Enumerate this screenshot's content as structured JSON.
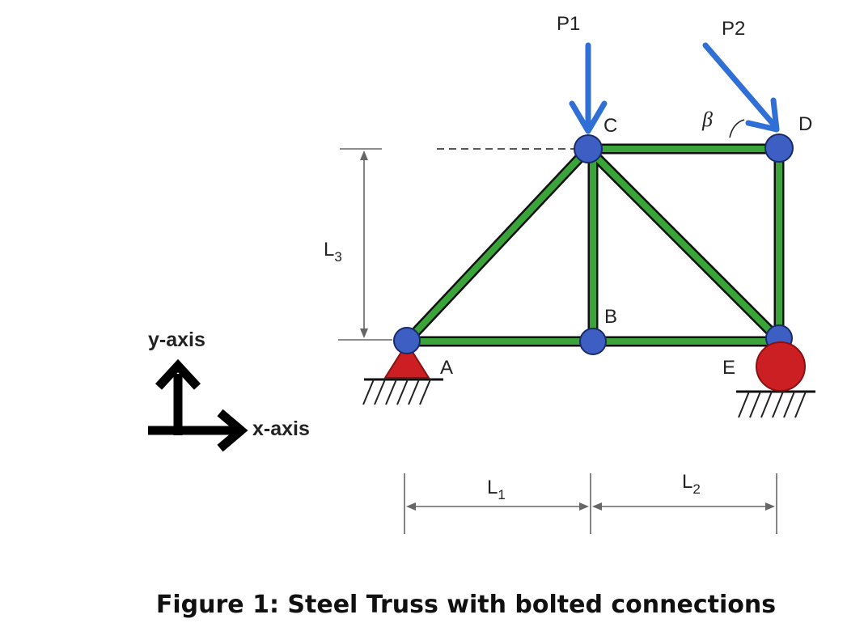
{
  "loads": {
    "p1": "P1",
    "p2": "P2",
    "angle": "β"
  },
  "joints": {
    "a": "A",
    "b": "B",
    "c": "C",
    "d": "D",
    "e": "E"
  },
  "dimensions": {
    "l1": {
      "base": "L",
      "sub": "1"
    },
    "l2": {
      "base": "L",
      "sub": "2"
    },
    "l3": {
      "base": "L",
      "sub": "3"
    }
  },
  "axes": {
    "y": "y-axis",
    "x": "x-axis"
  },
  "caption": "Figure 1: Steel Truss with bolted connections",
  "colors": {
    "member": "#3aa33a",
    "joint": "#3d5fc4",
    "load_arrow": "#2f6fd6",
    "pin_support": "#cc1f24",
    "roller_support": "#cc1f24"
  }
}
